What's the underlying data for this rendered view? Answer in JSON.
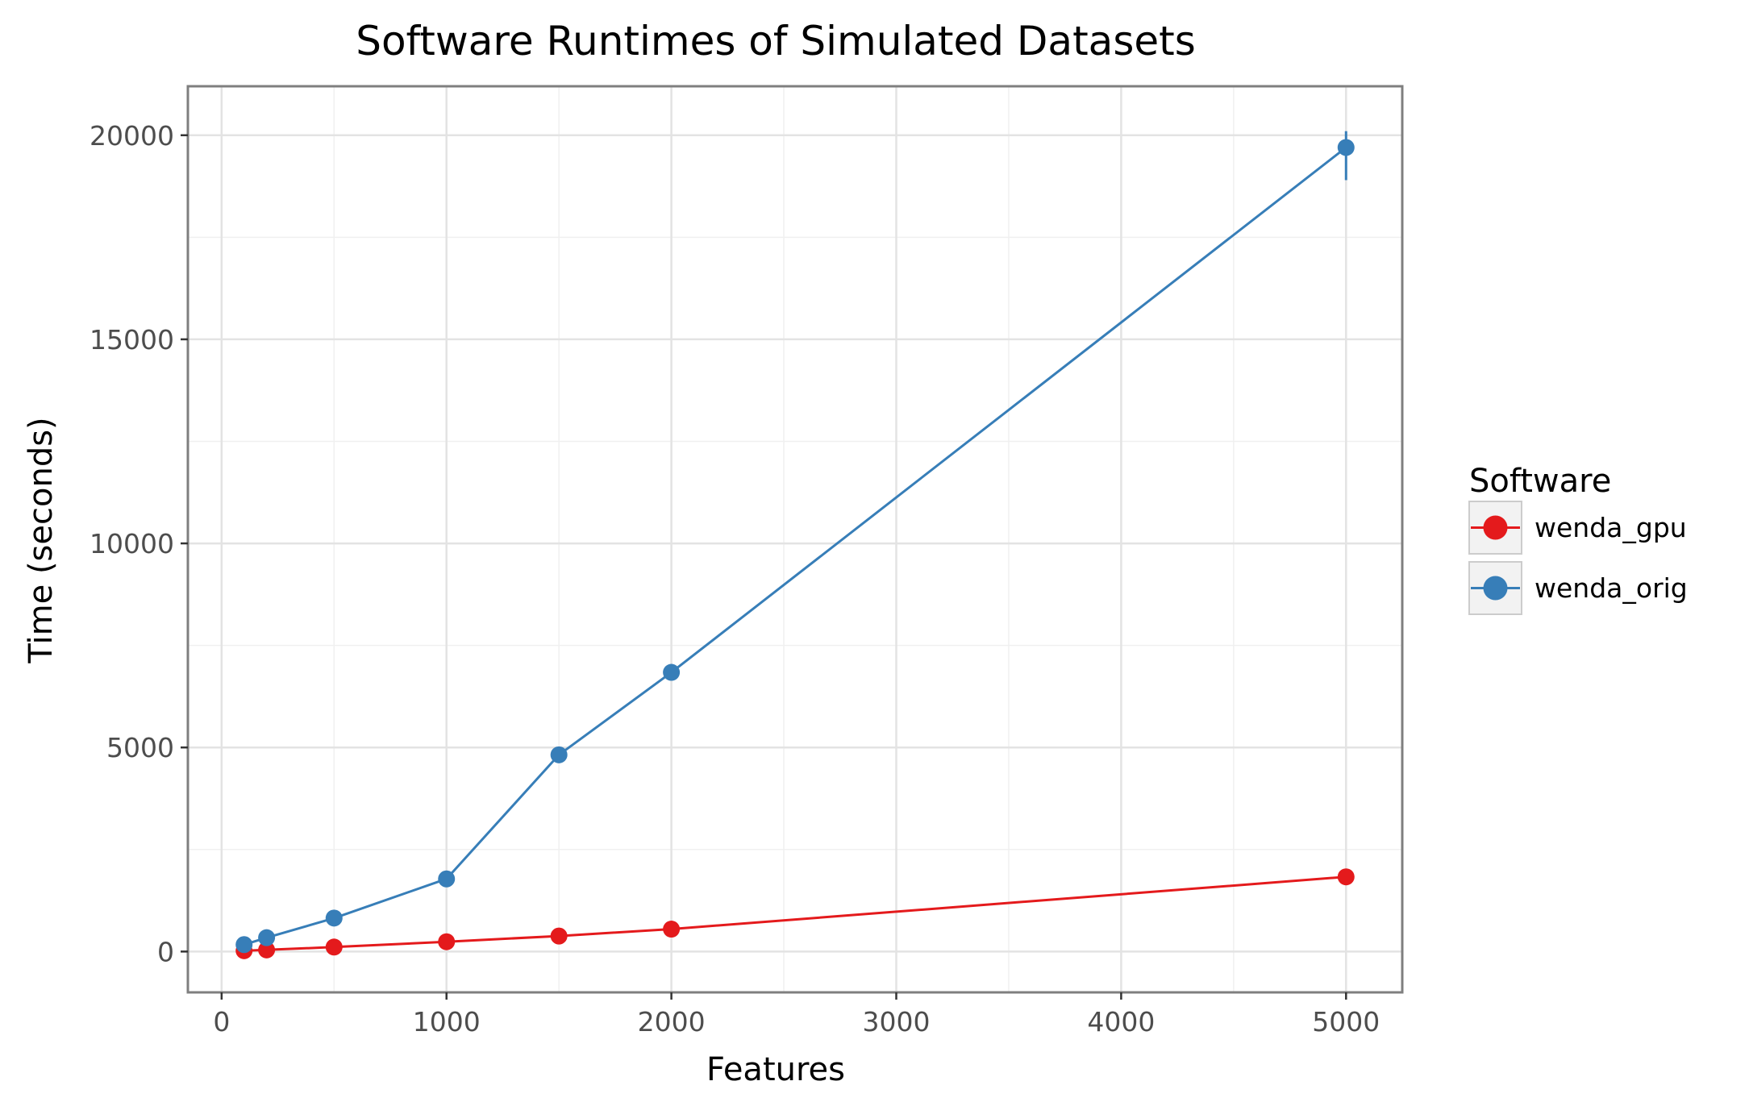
{
  "chart_data": {
    "type": "line",
    "title": "Software Runtimes of Simulated Datasets",
    "xlabel": "Features",
    "ylabel": "Time (seconds)",
    "xlim": [
      -150,
      5250
    ],
    "ylim": [
      -1000,
      21200
    ],
    "xticks": [
      0,
      1000,
      2000,
      3000,
      4000,
      5000
    ],
    "xtick_labels": [
      "0",
      "1000",
      "2000",
      "3000",
      "4000",
      "5000"
    ],
    "yticks": [
      0,
      5000,
      10000,
      15000,
      20000
    ],
    "ytick_labels": [
      "0",
      "5000",
      "10000",
      "15000",
      "20000"
    ],
    "grid": true,
    "legend": {
      "title": "Software",
      "position": "right"
    },
    "series": [
      {
        "name": "wenda_gpu",
        "color": "#e41a1c",
        "x": [
          100,
          200,
          500,
          1000,
          1500,
          2000,
          5000
        ],
        "y": [
          20,
          40,
          110,
          240,
          380,
          550,
          1830
        ],
        "err_low": [
          20,
          40,
          110,
          240,
          380,
          550,
          1830
        ],
        "err_high": [
          20,
          40,
          110,
          240,
          380,
          550,
          1830
        ]
      },
      {
        "name": "wenda_orig",
        "color": "#377eb8",
        "x": [
          100,
          200,
          500,
          1000,
          1500,
          2000,
          5000
        ],
        "y": [
          170,
          340,
          820,
          1780,
          4820,
          6840,
          19700
        ],
        "err_low": [
          170,
          340,
          820,
          1780,
          4820,
          6840,
          18900
        ],
        "err_high": [
          170,
          340,
          820,
          1780,
          4820,
          6840,
          20100
        ]
      }
    ]
  }
}
